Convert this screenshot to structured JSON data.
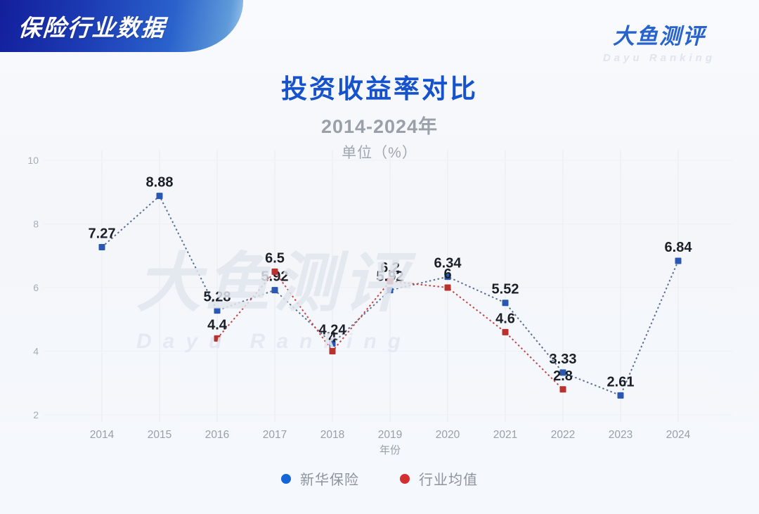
{
  "header": {
    "badge": "保险行业数据"
  },
  "brand": {
    "name": "大鱼测评",
    "subtitle": "Dayu Ranking"
  },
  "title": "投资收益率对比",
  "subtitle": "2014-2024年",
  "unit_label": "单位（%）",
  "watermark": {
    "text": "大鱼测评",
    "subtext": "Dayu Ranking"
  },
  "chart_data": {
    "type": "line",
    "x": [
      2014,
      2015,
      2016,
      2017,
      2018,
      2019,
      2020,
      2021,
      2022,
      2023,
      2024
    ],
    "xlabel": "年份",
    "yticks": [
      2,
      4,
      6,
      8,
      10
    ],
    "ylim": [
      2,
      10
    ],
    "grid": true,
    "line_style": "dotted",
    "marker": "square",
    "legend_position": "bottom",
    "series": [
      {
        "name": "新华保险",
        "marker_color": "#2a57b2",
        "line_color": "#5b6f96",
        "legend_color": "#1565d8",
        "values": [
          7.27,
          8.88,
          5.28,
          5.92,
          4.24,
          5.92,
          6.34,
          5.52,
          3.33,
          2.61,
          6.84
        ]
      },
      {
        "name": "行业均值",
        "marker_color": "#b8332e",
        "line_color": "#c64546",
        "legend_color": "#d32f2f",
        "values": [
          null,
          null,
          4.4,
          6.5,
          4,
          6.2,
          6,
          4.6,
          2.8,
          null,
          null
        ]
      }
    ]
  },
  "colors": {
    "title_blue": "#1552cb",
    "badge_navy": "#131f9b",
    "badge_light": "#5f9ad9",
    "axis_text": "#98a0aa",
    "data_label": "#1b1f27",
    "grid_line": "#e8ecf2"
  }
}
